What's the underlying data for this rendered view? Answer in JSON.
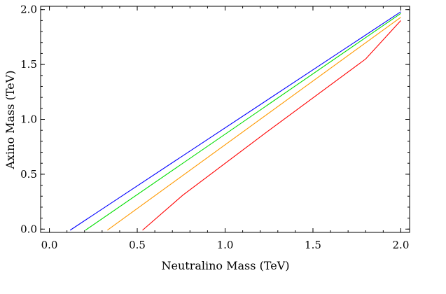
{
  "chart_data": {
    "type": "line",
    "title": "",
    "xlabel": "Neutralino Mass (TeV)",
    "ylabel": "Axino Mass (TeV)",
    "xlim": [
      -0.05,
      2.05
    ],
    "ylim": [
      -0.03,
      2.03
    ],
    "grid": false,
    "legend": "none",
    "x_ticks": [
      0.0,
      0.5,
      1.0,
      1.5,
      2.0
    ],
    "x_tick_labels": [
      "0.0",
      "0.5",
      "1.0",
      "1.5",
      "2.0"
    ],
    "y_ticks": [
      0.0,
      0.5,
      1.0,
      1.5,
      2.0
    ],
    "y_tick_labels": [
      "0.0",
      "0.5",
      "1.0",
      "1.5",
      "2.0"
    ],
    "x_minor_step": 0.1,
    "y_minor_step": 0.1,
    "series": [
      {
        "name": "blue",
        "color": "#0000ff",
        "x": [
          0.118,
          2.0
        ],
        "y": [
          -0.01,
          1.98
        ]
      },
      {
        "name": "green",
        "color": "#00dd00",
        "x": [
          0.205,
          2.0
        ],
        "y": [
          -0.01,
          1.965
        ]
      },
      {
        "name": "orange",
        "color": "#ff9900",
        "x": [
          0.33,
          2.0
        ],
        "y": [
          -0.01,
          1.93
        ]
      },
      {
        "name": "red",
        "color": "#ff0000",
        "x": [
          0.53,
          0.76,
          1.25,
          1.8,
          2.0
        ],
        "y": [
          -0.01,
          0.31,
          0.9,
          1.55,
          1.9
        ]
      }
    ]
  }
}
